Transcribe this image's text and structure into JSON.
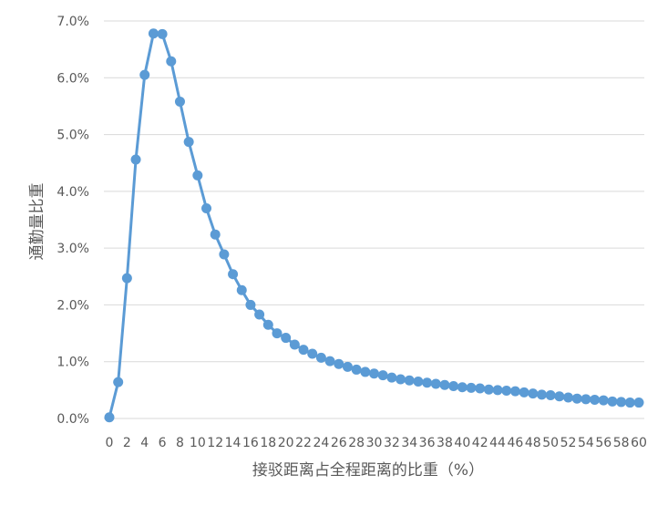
{
  "chart_data": {
    "type": "line",
    "title": "",
    "xlabel": "接驳距离占全程距离的比重（%）",
    "ylabel": "通勤量比重",
    "ylim": [
      0,
      7
    ],
    "grid": "horizontal",
    "series_color": "#5b9bd5",
    "x": [
      0,
      1,
      2,
      3,
      4,
      5,
      6,
      7,
      8,
      9,
      10,
      11,
      12,
      13,
      14,
      15,
      16,
      17,
      18,
      19,
      20,
      21,
      22,
      23,
      24,
      25,
      26,
      27,
      28,
      29,
      30,
      31,
      32,
      33,
      34,
      35,
      36,
      37,
      38,
      39,
      40,
      41,
      42,
      43,
      44,
      45,
      46,
      47,
      48,
      49,
      50,
      51,
      52,
      53,
      54,
      55,
      56,
      57,
      58,
      59,
      60
    ],
    "x_tick_labels": [
      "0",
      "2",
      "4",
      "6",
      "8",
      "10",
      "12",
      "14",
      "16",
      "18",
      "20",
      "22",
      "24",
      "26",
      "28",
      "30",
      "32",
      "34",
      "36",
      "38",
      "40",
      "42",
      "44",
      "46",
      "48",
      "50",
      "52",
      "54",
      "56",
      "58",
      "60"
    ],
    "y_tick_labels": [
      "0.0%",
      "1.0%",
      "2.0%",
      "3.0%",
      "4.0%",
      "5.0%",
      "6.0%",
      "7.0%"
    ],
    "series": [
      {
        "values": [
          0.02,
          0.64,
          2.47,
          4.56,
          6.05,
          6.78,
          6.77,
          6.29,
          5.58,
          4.87,
          4.28,
          3.7,
          3.24,
          2.89,
          2.54,
          2.26,
          2.0,
          1.83,
          1.65,
          1.5,
          1.42,
          1.3,
          1.21,
          1.14,
          1.07,
          1.01,
          0.96,
          0.91,
          0.86,
          0.82,
          0.79,
          0.76,
          0.72,
          0.69,
          0.67,
          0.65,
          0.63,
          0.61,
          0.59,
          0.57,
          0.55,
          0.54,
          0.53,
          0.51,
          0.5,
          0.49,
          0.48,
          0.46,
          0.44,
          0.42,
          0.41,
          0.39,
          0.37,
          0.35,
          0.34,
          0.33,
          0.32,
          0.3,
          0.29,
          0.28,
          0.28
        ]
      }
    ]
  }
}
